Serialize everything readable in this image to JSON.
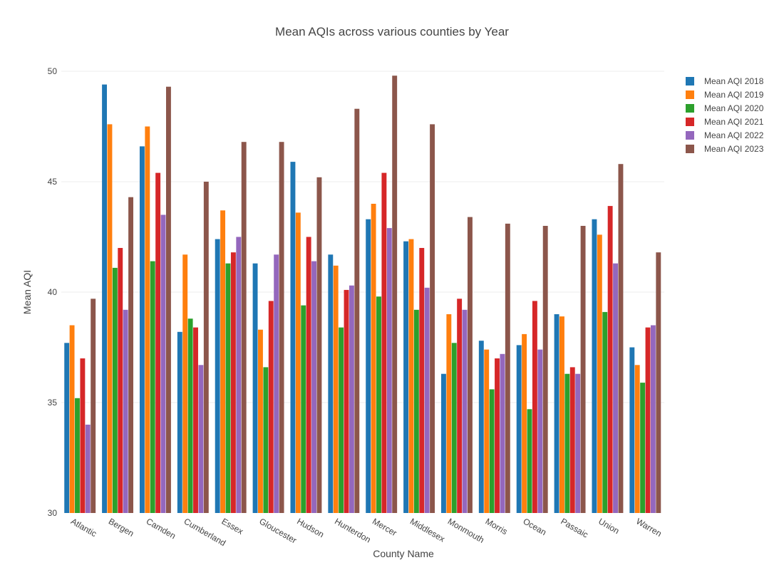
{
  "chart_data": {
    "type": "bar",
    "title": "Mean AQIs across various counties by Year",
    "xlabel": "County Name",
    "ylabel": "Mean AQI",
    "ylim": [
      30,
      50
    ],
    "yticks": [
      30,
      35,
      40,
      45,
      50
    ],
    "grid": true,
    "legend_position": "right",
    "categories": [
      "Atlantic",
      "Bergen",
      "Camden",
      "Cumberland",
      "Essex",
      "Gloucester",
      "Hudson",
      "Hunterdon",
      "Mercer",
      "Middlesex",
      "Monmouth",
      "Morris",
      "Ocean",
      "Passaic",
      "Union",
      "Warren"
    ],
    "series": [
      {
        "name": "Mean AQI 2018",
        "color": "#1f77b4",
        "values": [
          37.7,
          49.4,
          46.6,
          38.2,
          42.4,
          41.3,
          45.9,
          41.7,
          43.3,
          42.3,
          36.3,
          37.8,
          37.6,
          39.0,
          43.3,
          37.5
        ]
      },
      {
        "name": "Mean AQI 2019",
        "color": "#ff7f0e",
        "values": [
          38.5,
          47.6,
          47.5,
          41.7,
          43.7,
          38.3,
          43.6,
          41.2,
          44.0,
          42.4,
          39.0,
          37.4,
          38.1,
          38.9,
          42.6,
          36.7
        ]
      },
      {
        "name": "Mean AQI 2020",
        "color": "#2ca02c",
        "values": [
          35.2,
          41.1,
          41.4,
          38.8,
          41.3,
          36.6,
          39.4,
          38.4,
          39.8,
          39.2,
          37.7,
          35.6,
          34.7,
          36.3,
          39.1,
          35.9
        ]
      },
      {
        "name": "Mean AQI 2021",
        "color": "#d62728",
        "values": [
          37.0,
          42.0,
          45.4,
          38.4,
          41.8,
          39.6,
          42.5,
          40.1,
          45.4,
          42.0,
          39.7,
          37.0,
          39.6,
          36.6,
          43.9,
          38.4
        ]
      },
      {
        "name": "Mean AQI 2022",
        "color": "#9467bd",
        "values": [
          34.0,
          39.2,
          43.5,
          36.7,
          42.5,
          41.7,
          41.4,
          40.3,
          42.9,
          40.2,
          39.2,
          37.2,
          37.4,
          36.3,
          41.3,
          38.5
        ]
      },
      {
        "name": "Mean AQI 2023",
        "color": "#8c564b",
        "values": [
          39.7,
          44.3,
          49.3,
          45.0,
          46.8,
          46.8,
          45.2,
          48.3,
          49.8,
          47.6,
          43.4,
          43.1,
          43.0,
          43.0,
          45.8,
          41.8
        ]
      }
    ]
  }
}
